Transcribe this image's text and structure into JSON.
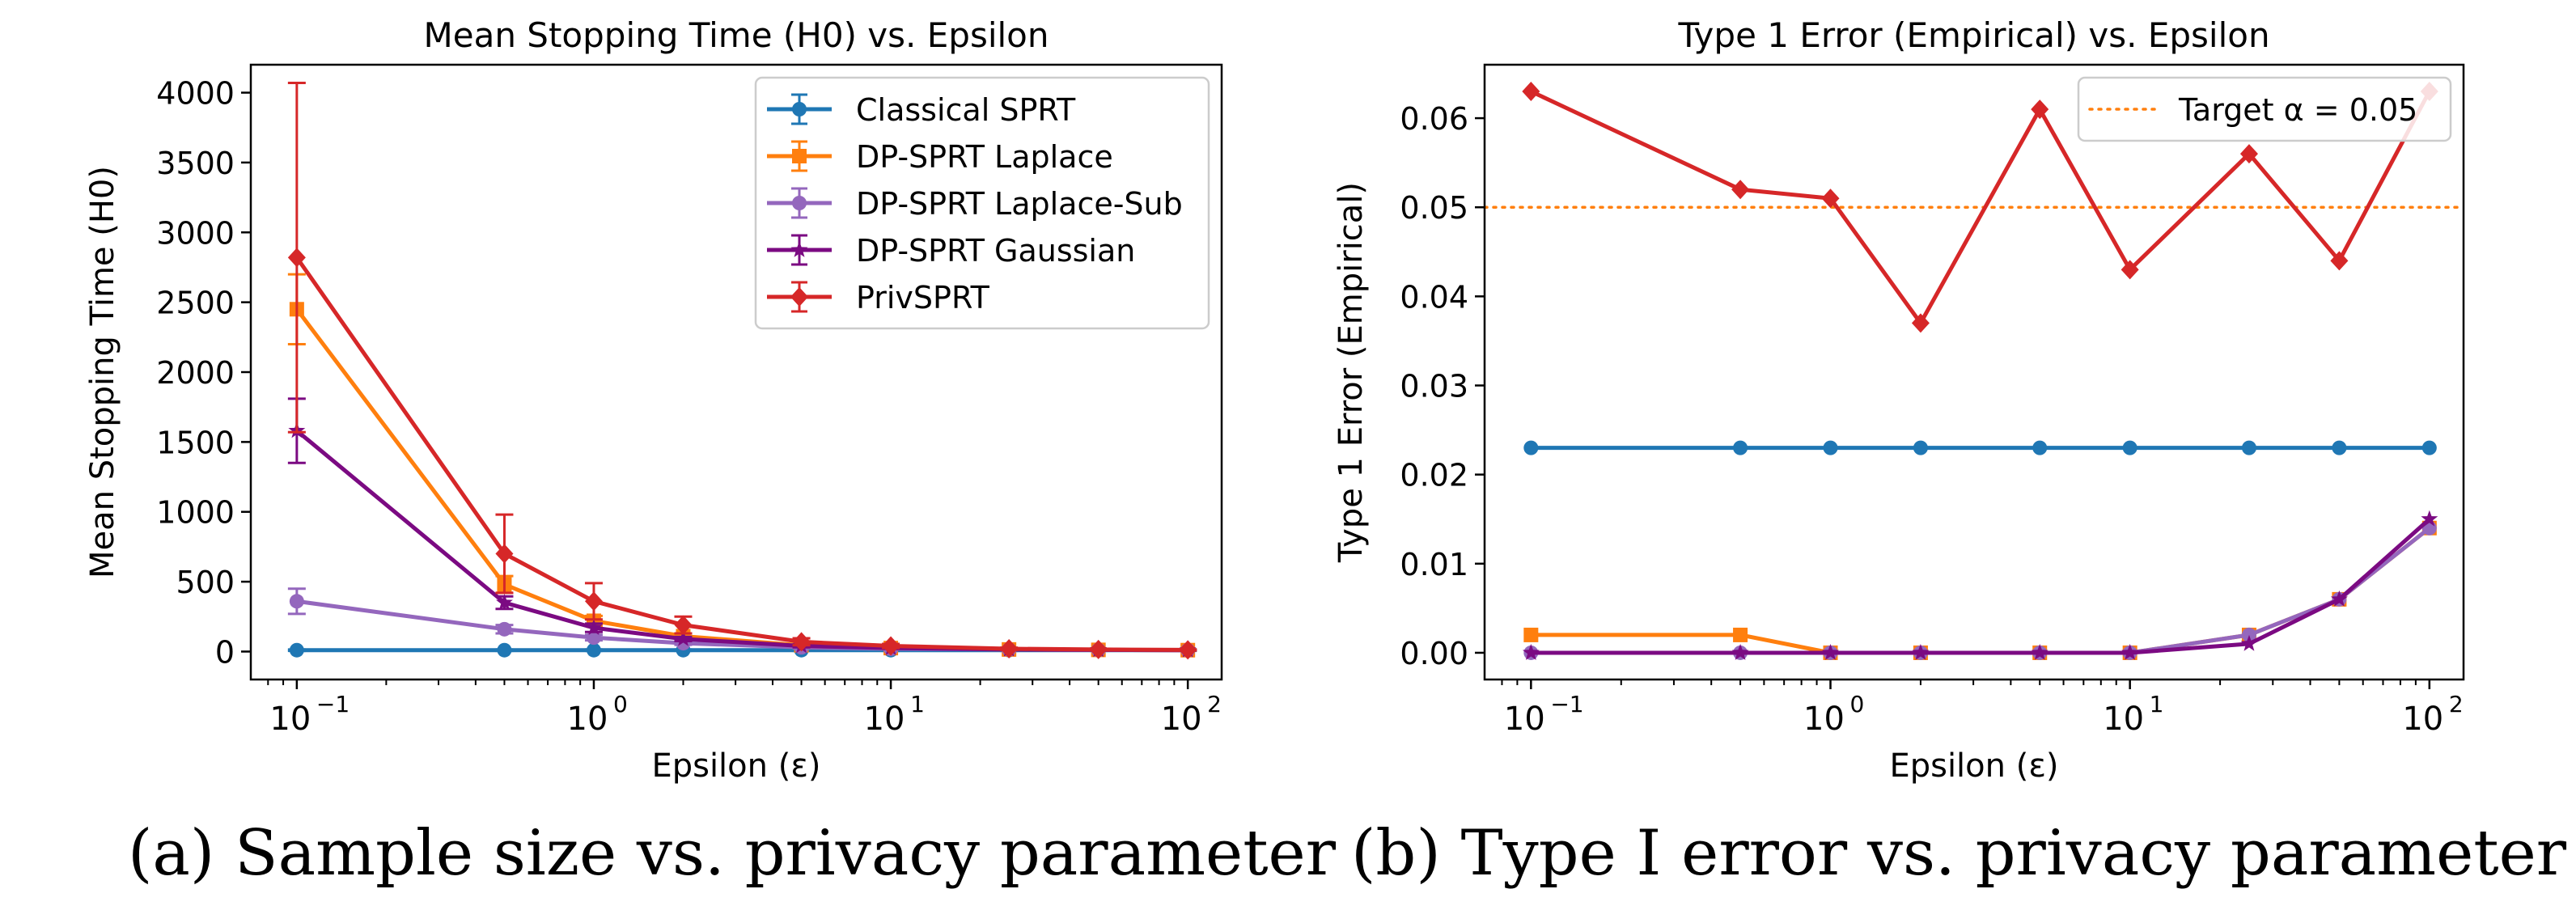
{
  "colors": {
    "classical": "#1f77b4",
    "laplace": "#ff7f0e",
    "laplace_sub": "#9467bd",
    "gaussian": "#7b0a82",
    "privsprt": "#d62728",
    "target": "#ff7f0e"
  },
  "captions": {
    "a": "(a) Sample size vs. privacy parameter",
    "b": "(b) Type I error vs. privacy parameter"
  },
  "chart_data": [
    {
      "type": "line",
      "title": "Mean Stopping Time (H0) vs. Epsilon",
      "xlabel": "Epsilon (ε)",
      "ylabel": "Mean Stopping Time (H0)",
      "xscale": "log",
      "xlim": [
        0.07,
        130
      ],
      "ylim": [
        -200,
        4200
      ],
      "x_ticks": [
        0.1,
        1,
        10,
        100
      ],
      "x_tick_labels": [
        [
          "10",
          "−1"
        ],
        [
          "10",
          "0"
        ],
        [
          "10",
          "1"
        ],
        [
          "10",
          "2"
        ]
      ],
      "y_ticks": [
        0,
        500,
        1000,
        1500,
        2000,
        2500,
        3000,
        3500,
        4000
      ],
      "y_tick_labels": [
        "0",
        "500",
        "1000",
        "1500",
        "2000",
        "2500",
        "3000",
        "3500",
        "4000"
      ],
      "legend_position": "top-right",
      "x": [
        0.1,
        0.5,
        1,
        2,
        5,
        10,
        25,
        50,
        100
      ],
      "series": [
        {
          "name": "Classical SPRT",
          "color_key": "classical",
          "marker": "circle",
          "values": [
            10,
            10,
            10,
            10,
            10,
            10,
            10,
            10,
            10
          ],
          "errors": [
            5,
            5,
            5,
            5,
            5,
            5,
            5,
            5,
            5
          ]
        },
        {
          "name": "DP-SPRT Laplace",
          "color_key": "laplace",
          "marker": "square",
          "values": [
            2450,
            480,
            220,
            110,
            45,
            25,
            15,
            12,
            10
          ],
          "errors": [
            250,
            60,
            35,
            20,
            10,
            6,
            4,
            3,
            2
          ]
        },
        {
          "name": "DP-SPRT Laplace-Sub",
          "color_key": "laplace_sub",
          "marker": "circle",
          "values": [
            360,
            160,
            100,
            60,
            30,
            20,
            15,
            12,
            10
          ],
          "errors": [
            90,
            30,
            20,
            12,
            8,
            5,
            3,
            2,
            2
          ]
        },
        {
          "name": "DP-SPRT Gaussian",
          "color_key": "gaussian",
          "marker": "star",
          "values": [
            1580,
            350,
            170,
            90,
            40,
            25,
            15,
            12,
            10
          ],
          "errors": [
            230,
            45,
            30,
            15,
            10,
            6,
            4,
            3,
            2
          ]
        },
        {
          "name": "PrivSPRT",
          "color_key": "privsprt",
          "marker": "diamond",
          "values": [
            2820,
            700,
            360,
            190,
            70,
            40,
            20,
            15,
            12
          ],
          "errors": [
            1250,
            280,
            130,
            60,
            25,
            15,
            8,
            5,
            4
          ]
        }
      ]
    },
    {
      "type": "line",
      "title": "Type 1 Error (Empirical) vs. Epsilon",
      "xlabel": "Epsilon (ε)",
      "ylabel": "Type 1 Error (Empirical)",
      "xscale": "log",
      "xlim": [
        0.07,
        130
      ],
      "ylim": [
        -0.003,
        0.066
      ],
      "x_ticks": [
        0.1,
        1,
        10,
        100
      ],
      "x_tick_labels": [
        [
          "10",
          "−1"
        ],
        [
          "10",
          "0"
        ],
        [
          "10",
          "1"
        ],
        [
          "10",
          "2"
        ]
      ],
      "y_ticks": [
        0,
        0.01,
        0.02,
        0.03,
        0.04,
        0.05,
        0.06
      ],
      "y_tick_labels": [
        "0.00",
        "0.01",
        "0.02",
        "0.03",
        "0.04",
        "0.05",
        "0.06"
      ],
      "legend_position": "top-right",
      "reference_line": {
        "label": "Target α = 0.05",
        "y": 0.05,
        "color_key": "target"
      },
      "x": [
        0.1,
        0.5,
        1,
        2,
        5,
        10,
        25,
        50,
        100
      ],
      "series": [
        {
          "name": "Classical SPRT",
          "color_key": "classical",
          "marker": "circle",
          "values": [
            0.023,
            0.023,
            0.023,
            0.023,
            0.023,
            0.023,
            0.023,
            0.023,
            0.023
          ]
        },
        {
          "name": "DP-SPRT Laplace",
          "color_key": "laplace",
          "marker": "square",
          "values": [
            0.002,
            0.002,
            0.0,
            0.0,
            0.0,
            0.0,
            0.002,
            0.006,
            0.014
          ]
        },
        {
          "name": "DP-SPRT Laplace-Sub",
          "color_key": "laplace_sub",
          "marker": "circle",
          "values": [
            0.0,
            0.0,
            0.0,
            0.0,
            0.0,
            0.0,
            0.002,
            0.006,
            0.014
          ]
        },
        {
          "name": "DP-SPRT Gaussian",
          "color_key": "gaussian",
          "marker": "star",
          "values": [
            0.0,
            0.0,
            0.0,
            0.0,
            0.0,
            0.0,
            0.001,
            0.006,
            0.015
          ]
        },
        {
          "name": "PrivSPRT",
          "color_key": "privsprt",
          "marker": "diamond",
          "values": [
            0.063,
            0.052,
            0.051,
            0.037,
            0.061,
            0.043,
            0.056,
            0.044,
            0.063
          ]
        }
      ]
    }
  ]
}
